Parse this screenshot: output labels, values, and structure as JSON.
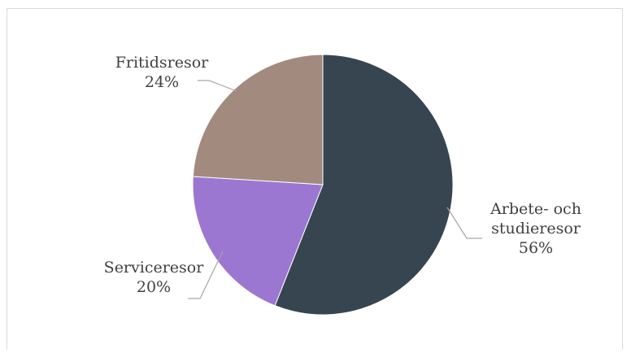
{
  "chart_data": {
    "type": "pie",
    "title": "",
    "slices": [
      {
        "label": "Arbete- och studieresor",
        "label_lines": [
          "Arbete- och",
          "studieresor"
        ],
        "value": 56,
        "value_label": "56%",
        "color": "#36454f"
      },
      {
        "label": "Serviceresor",
        "label_lines": [
          "Serviceresor"
        ],
        "value": 20,
        "value_label": "20%",
        "color": "#9b77d1"
      },
      {
        "label": "Fritidsresor",
        "label_lines": [
          "Fritidsresor"
        ],
        "value": 24,
        "value_label": "24%",
        "color": "#a38a7e"
      }
    ],
    "start_angle_deg": 0,
    "direction": "clockwise",
    "legend": "none",
    "data_labels": "outside-with-leader-lines"
  }
}
